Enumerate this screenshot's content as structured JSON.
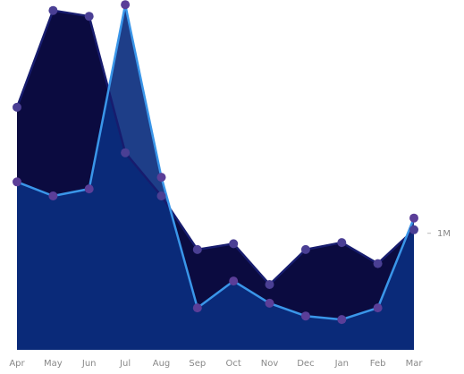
{
  "chart_data": {
    "type": "area",
    "categories": [
      "Apr",
      "May",
      "Jun",
      "Jul",
      "Aug",
      "Sep",
      "Oct",
      "Nov",
      "Dec",
      "Jan",
      "Feb",
      "Mar"
    ],
    "y_tick_labels": [
      "1M"
    ],
    "y_tick_values": [
      1000000
    ],
    "ylim": [
      0,
      3000000
    ],
    "grid": false,
    "series": [
      {
        "values": [
          2080000,
          2910000,
          2860000,
          1690000,
          1320000,
          860000,
          910000,
          560000,
          860000,
          920000,
          740000,
          1030000
        ],
        "fill": "#0b0b40",
        "stroke": "#171c6e",
        "marker": "#4a3f94"
      },
      {
        "values": [
          1440000,
          1320000,
          1380000,
          2960000,
          1480000,
          360000,
          590000,
          400000,
          290000,
          260000,
          360000,
          1130000
        ],
        "fill": "#0b2e7e",
        "stroke": "#3a96e9",
        "marker": "#5b3e98"
      }
    ]
  }
}
